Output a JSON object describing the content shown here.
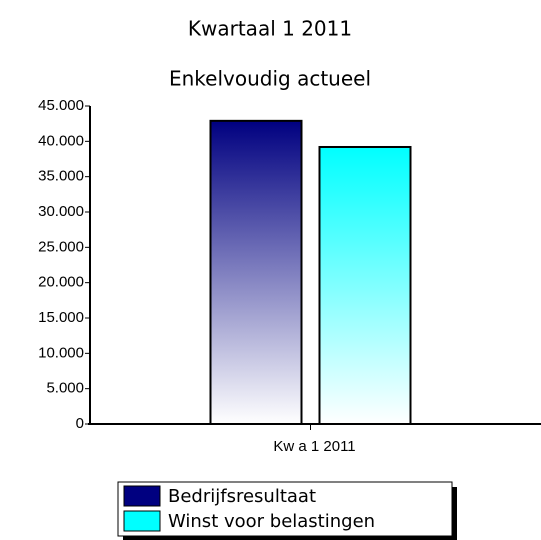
{
  "chart_data": {
    "type": "bar",
    "title": "Kwartaal 1 2011",
    "subtitle": "Enkelvoudig actueel",
    "categories": [
      "Kw a 1 2011"
    ],
    "series": [
      {
        "name": "Bedrijfsresultaat",
        "color": "#000080",
        "values": [
          42900
        ]
      },
      {
        "name": "Winst voor belastingen",
        "color": "#00ffff",
        "values": [
          39200
        ]
      }
    ],
    "ylim": [
      0,
      45000
    ],
    "yticks": [
      0,
      {
        "value": 5000,
        "label": "5.000"
      },
      {
        "value": 10000,
        "label": "10.000"
      },
      {
        "value": 15000,
        "label": "15.000"
      },
      {
        "value": 20000,
        "label": "20.000"
      },
      {
        "value": 25000,
        "label": "25.000"
      },
      {
        "value": 30000,
        "label": "30.000"
      },
      {
        "value": 35000,
        "label": "35.000"
      },
      {
        "value": 40000,
        "label": "40.000"
      },
      {
        "value": 45000,
        "label": "45.000"
      }
    ],
    "grid": false,
    "legend": "bottom"
  }
}
